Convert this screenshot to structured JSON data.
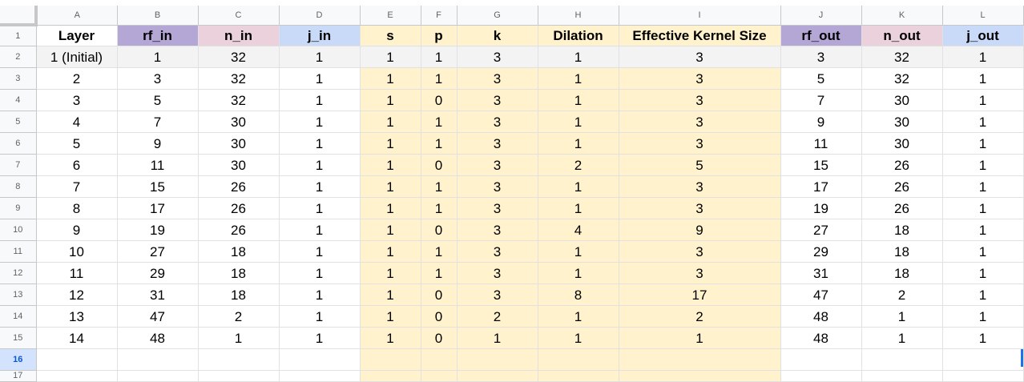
{
  "sheet": {
    "column_letters": [
      "A",
      "B",
      "C",
      "D",
      "E",
      "F",
      "G",
      "H",
      "I",
      "J",
      "K",
      "L"
    ],
    "row_numbers": [
      "1",
      "2",
      "3",
      "4",
      "5",
      "6",
      "7",
      "8",
      "9",
      "10",
      "11",
      "12",
      "13",
      "14",
      "15",
      "16",
      "17"
    ],
    "headers": [
      "Layer",
      "rf_in",
      "n_in",
      "j_in",
      "s",
      "p",
      "k",
      "Dilation",
      "Effective Kernel Size",
      "rf_out",
      "n_out",
      "j_out"
    ],
    "rows": [
      [
        "1 (Initial)",
        "1",
        "32",
        "1",
        "1",
        "1",
        "3",
        "1",
        "3",
        "3",
        "32",
        "1"
      ],
      [
        "2",
        "3",
        "32",
        "1",
        "1",
        "1",
        "3",
        "1",
        "3",
        "5",
        "32",
        "1"
      ],
      [
        "3",
        "5",
        "32",
        "1",
        "1",
        "0",
        "3",
        "1",
        "3",
        "7",
        "30",
        "1"
      ],
      [
        "4",
        "7",
        "30",
        "1",
        "1",
        "1",
        "3",
        "1",
        "3",
        "9",
        "30",
        "1"
      ],
      [
        "5",
        "9",
        "30",
        "1",
        "1",
        "1",
        "3",
        "1",
        "3",
        "11",
        "30",
        "1"
      ],
      [
        "6",
        "11",
        "30",
        "1",
        "1",
        "0",
        "3",
        "2",
        "5",
        "15",
        "26",
        "1"
      ],
      [
        "7",
        "15",
        "26",
        "1",
        "1",
        "1",
        "3",
        "1",
        "3",
        "17",
        "26",
        "1"
      ],
      [
        "8",
        "17",
        "26",
        "1",
        "1",
        "1",
        "3",
        "1",
        "3",
        "19",
        "26",
        "1"
      ],
      [
        "9",
        "19",
        "26",
        "1",
        "1",
        "0",
        "3",
        "4",
        "9",
        "27",
        "18",
        "1"
      ],
      [
        "10",
        "27",
        "18",
        "1",
        "1",
        "1",
        "3",
        "1",
        "3",
        "29",
        "18",
        "1"
      ],
      [
        "11",
        "29",
        "18",
        "1",
        "1",
        "1",
        "3",
        "1",
        "3",
        "31",
        "18",
        "1"
      ],
      [
        "12",
        "31",
        "18",
        "1",
        "1",
        "0",
        "3",
        "8",
        "17",
        "47",
        "2",
        "1"
      ],
      [
        "13",
        "47",
        "2",
        "1",
        "1",
        "0",
        "2",
        "1",
        "2",
        "48",
        "1",
        "1"
      ],
      [
        "14",
        "48",
        "1",
        "1",
        "1",
        "0",
        "1",
        "1",
        "1",
        "48",
        "1",
        "1"
      ]
    ],
    "selected_row": "16",
    "colors": {
      "rf_header": "#b4a7d6",
      "n_header": "#ead1dc",
      "j_header": "#c9daf8",
      "param_fill": "#fff2cc",
      "first_row_fill": "#f3f3f3",
      "selection": "#1a73e8"
    }
  }
}
